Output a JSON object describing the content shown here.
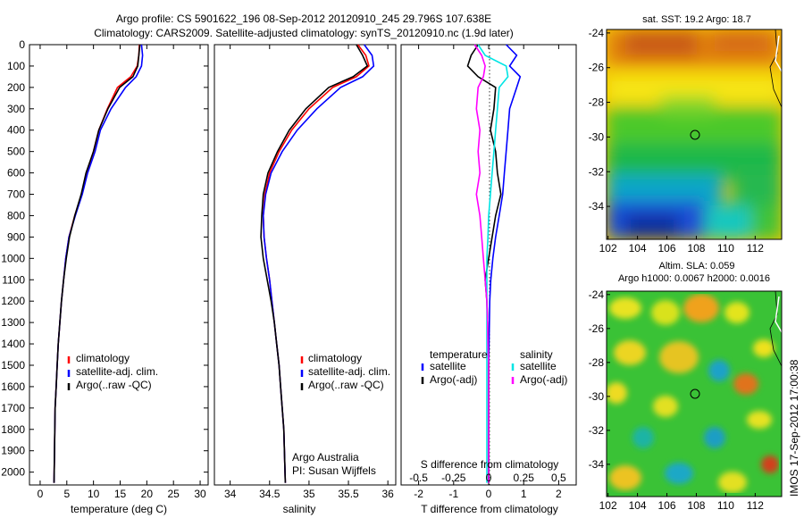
{
  "title_line1": "Argo profile: CS 5901622_196 08-Sep-2012 20120910_245 29.796S 107.638E",
  "title_line2": "Climatology: CARS2009. Satellite-adjusted climatology: synTS_20120910.nc (1.9d later)",
  "side_label": "IMOS 17-Sep-2012 17:00:38",
  "colors": {
    "climatology": "#ff0000",
    "satellite": "#0000ff",
    "argo": "#000000",
    "sat_s": "#00e5e5",
    "argo_s": "#ff00ff"
  },
  "depth_ticks": [
    "0",
    "100",
    "200",
    "300",
    "400",
    "500",
    "600",
    "700",
    "800",
    "900",
    "1000",
    "1100",
    "1200",
    "1300",
    "1400",
    "1500",
    "1600",
    "1700",
    "1800",
    "1900",
    "2000"
  ],
  "panels": {
    "temperature": {
      "xlabel": "temperature (deg C)",
      "xticks": [
        "0",
        "5",
        "10",
        "15",
        "20",
        "25",
        "30"
      ],
      "legend": [
        "climatology",
        "satellite-adj. clim.",
        "Argo(..raw -QC)"
      ]
    },
    "salinity": {
      "xlabel": "salinity",
      "xticks": [
        "34",
        "34.5",
        "35",
        "35.5",
        "36"
      ],
      "legend": [
        "climatology",
        "satellite-adj. clim.",
        "Argo(..raw -QC)"
      ],
      "note1": "Argo Australia",
      "note2": "PI: Susan Wijffels"
    },
    "difference": {
      "xlabel": "T difference from climatology",
      "xticks": [
        "-2",
        "-1",
        "0",
        "1",
        "2"
      ],
      "top_label": "S difference from climatology",
      "top_ticks": [
        "-0.5",
        "-0.25",
        "0",
        "0.25",
        "0.5"
      ],
      "legend_t_title": "temperature",
      "legend_s_title": "salinity",
      "legend_t": [
        "satellite",
        "Argo(-adj)"
      ],
      "legend_s": [
        "satellite",
        "Argo(-adj)"
      ]
    },
    "sst_map": {
      "title": "sat. SST: 19.2  Argo: 18.7",
      "xticks": [
        "102",
        "104",
        "106",
        "108",
        "110",
        "112"
      ],
      "yticks": [
        "-24",
        "-26",
        "-28",
        "-30",
        "-32",
        "-34"
      ]
    },
    "sla_map": {
      "title1": "Altim. SLA: 0.059",
      "title2": "Argo h1000: 0.0067 h2000: 0.0016",
      "xticks": [
        "102",
        "104",
        "106",
        "108",
        "110",
        "112"
      ],
      "yticks": [
        "-24",
        "-26",
        "-28",
        "-30",
        "-32",
        "-34"
      ]
    }
  },
  "chart_data": [
    {
      "type": "line",
      "title": "",
      "xlabel": "temperature (deg C)",
      "ylabel": "",
      "xlim": [
        -2,
        31.5
      ],
      "ylim": [
        2060,
        0
      ],
      "series": [
        {
          "name": "climatology",
          "x": [
            18.6,
            18.5,
            18.2,
            17.0,
            14.5,
            12.6,
            11.0,
            10.0,
            8.7,
            7.8,
            6.5,
            5.4,
            4.8,
            4.4,
            4.0,
            3.7,
            3.4,
            3.2,
            3.0,
            2.8,
            2.6
          ],
          "y": [
            0,
            50,
            100,
            150,
            200,
            300,
            400,
            500,
            600,
            700,
            800,
            900,
            1000,
            1100,
            1200,
            1300,
            1400,
            1500,
            1600,
            1700,
            2050
          ]
        },
        {
          "name": "satellite-adj. clim.",
          "x": [
            19.0,
            19.2,
            19.0,
            18.0,
            16.0,
            13.3,
            11.3,
            10.3,
            8.9,
            7.9,
            6.6,
            5.4,
            4.8,
            4.4,
            4.0,
            3.7,
            3.4,
            3.2,
            3.0,
            2.8,
            2.6
          ],
          "y": [
            0,
            50,
            100,
            150,
            200,
            300,
            400,
            500,
            600,
            700,
            800,
            900,
            1000,
            1100,
            1200,
            1300,
            1400,
            1500,
            1600,
            1700,
            2050
          ]
        },
        {
          "name": "Argo(..raw -QC)",
          "x": [
            18.7,
            18.5,
            18.3,
            17.4,
            14.9,
            12.7,
            11.0,
            10.0,
            8.6,
            7.7,
            6.5,
            5.5,
            4.9,
            4.4,
            4.0,
            3.7,
            3.4,
            3.2,
            3.0,
            2.8,
            2.6
          ],
          "y": [
            0,
            50,
            100,
            150,
            200,
            300,
            400,
            500,
            600,
            700,
            800,
            900,
            1000,
            1100,
            1200,
            1300,
            1400,
            1500,
            1600,
            1700,
            2050
          ]
        }
      ]
    },
    {
      "type": "line",
      "title": "",
      "xlabel": "salinity",
      "ylabel": "",
      "xlim": [
        33.8,
        36.1
      ],
      "ylim": [
        2060,
        0
      ],
      "series": [
        {
          "name": "climatology",
          "x": [
            35.62,
            35.72,
            35.76,
            35.6,
            35.3,
            35.0,
            34.78,
            34.62,
            34.5,
            34.44,
            34.42,
            34.43,
            34.46,
            34.5,
            34.53,
            34.56,
            34.59,
            34.62,
            34.64,
            34.66,
            34.68,
            34.7
          ],
          "y": [
            0,
            50,
            100,
            150,
            200,
            300,
            400,
            500,
            600,
            700,
            800,
            900,
            1000,
            1100,
            1200,
            1300,
            1400,
            1500,
            1600,
            1700,
            1800,
            2050
          ]
        },
        {
          "name": "satellite-adj. clim.",
          "x": [
            35.7,
            35.8,
            35.82,
            35.68,
            35.4,
            35.1,
            34.85,
            34.66,
            34.52,
            34.45,
            34.42,
            34.43,
            34.46,
            34.5,
            34.53,
            34.56,
            34.59,
            34.62,
            34.64,
            34.66,
            34.68,
            34.7
          ],
          "y": [
            0,
            50,
            100,
            150,
            200,
            300,
            400,
            500,
            600,
            700,
            800,
            900,
            1000,
            1100,
            1200,
            1300,
            1400,
            1500,
            1600,
            1700,
            1800,
            2050
          ]
        },
        {
          "name": "Argo(..raw -QC)",
          "x": [
            35.6,
            35.68,
            35.74,
            35.56,
            35.25,
            34.96,
            34.75,
            34.6,
            34.48,
            34.42,
            34.4,
            34.39,
            34.42,
            34.47,
            34.52,
            34.56,
            34.59,
            34.62,
            34.64,
            34.66,
            34.68,
            34.7
          ],
          "y": [
            0,
            50,
            100,
            150,
            200,
            300,
            400,
            500,
            600,
            700,
            800,
            900,
            1000,
            1100,
            1200,
            1300,
            1400,
            1500,
            1600,
            1700,
            1800,
            2050
          ]
        }
      ]
    },
    {
      "type": "line",
      "title": "",
      "xlabel": "T difference from climatology",
      "ylabel": "",
      "xlim": [
        -2.5,
        2.5
      ],
      "ylim": [
        2060,
        0
      ],
      "series": [
        {
          "name": "temperature satellite",
          "x": [
            0.5,
            0.8,
            0.6,
            0.9,
            0.8,
            0.6,
            0.55,
            0.5,
            0.45,
            0.4,
            0.3,
            0.2,
            0.12,
            0.06,
            0.03,
            0.02,
            0.01,
            0.0,
            0.0,
            0.0,
            0.0
          ],
          "y": [
            0,
            50,
            100,
            150,
            200,
            300,
            400,
            500,
            600,
            700,
            800,
            900,
            1000,
            1100,
            1200,
            1300,
            1400,
            1500,
            1600,
            1700,
            2050
          ]
        },
        {
          "name": "temperature Argo(-adj)",
          "x": [
            -0.3,
            -0.5,
            -0.6,
            -0.3,
            0.2,
            0.15,
            0.05,
            0.2,
            0.25,
            0.35,
            0.2,
            0.1,
            0.0,
            -0.1,
            -0.05,
            -0.03,
            -0.02,
            0.0,
            0.0,
            0.0,
            0.0
          ],
          "y": [
            0,
            50,
            100,
            150,
            200,
            300,
            400,
            500,
            600,
            700,
            800,
            900,
            1000,
            1100,
            1200,
            1300,
            1400,
            1500,
            1600,
            1700,
            2050
          ]
        },
        {
          "name": "salinity satellite",
          "x": [
            -0.3,
            -0.1,
            0.5,
            0.55,
            0.3,
            0.25,
            0.2,
            0.15,
            0.1,
            0.05,
            0.0,
            -0.02,
            -0.05,
            -0.05,
            -0.05,
            -0.05,
            -0.05,
            -0.05,
            -0.05,
            -0.05,
            -0.05
          ],
          "y": [
            0,
            50,
            100,
            150,
            200,
            300,
            400,
            500,
            600,
            700,
            800,
            900,
            1000,
            1100,
            1200,
            1300,
            1400,
            1500,
            1600,
            1700,
            2050
          ]
        },
        {
          "name": "salinity Argo(-adj)",
          "x": [
            -0.4,
            -0.2,
            -0.1,
            -0.15,
            -0.3,
            -0.35,
            -0.25,
            -0.3,
            -0.25,
            -0.35,
            -0.25,
            -0.2,
            -0.15,
            -0.1,
            -0.05,
            -0.03,
            -0.02,
            0.0,
            0.0,
            0.0,
            0.0
          ],
          "y": [
            0,
            50,
            100,
            150,
            200,
            300,
            400,
            500,
            600,
            700,
            800,
            900,
            1000,
            1100,
            1200,
            1300,
            1400,
            1500,
            1600,
            1700,
            2050
          ]
        }
      ]
    }
  ]
}
